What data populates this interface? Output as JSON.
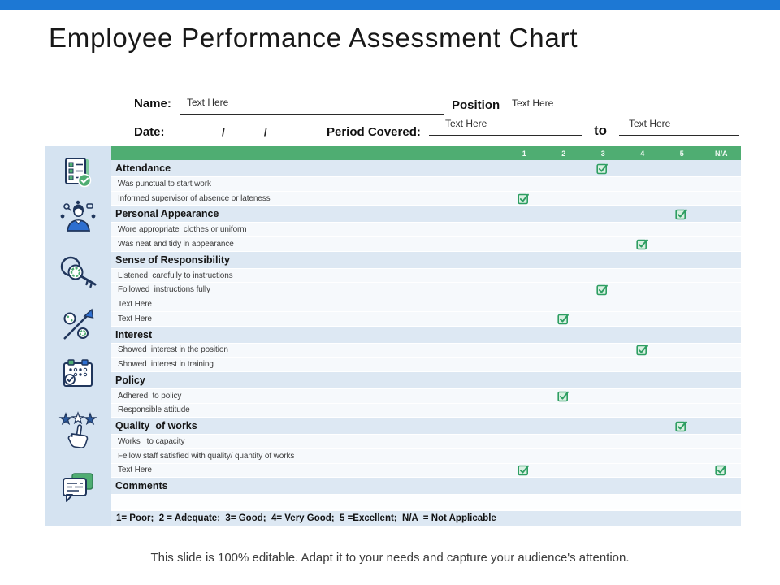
{
  "slide": {
    "title": "Employee Performance Assessment Chart",
    "footer": "This slide is 100% editable. Adapt it to your needs and capture your audience's attention."
  },
  "colors": {
    "top_bar_blue": "#1d78d4",
    "header_green": "#4fad72",
    "check_green": "#2e9e62",
    "check_fill": "#d9f0e2",
    "section_row_bg": "#dde8f3",
    "sidebar_bg": "#d5e3f1"
  },
  "form": {
    "name_label": "Name:",
    "name_value": "Text Here",
    "position_label": "Position",
    "position_value": "Text Here",
    "date_label": "Date:",
    "date_separator": "/",
    "period_label": "Period Covered:",
    "period_from_value": "Text Here",
    "to_label": "to",
    "period_to_value": "Text Here"
  },
  "table": {
    "columns": [
      "1",
      "2",
      "3",
      "4",
      "5",
      "N/A"
    ],
    "rows": [
      {
        "label": "Attendance",
        "type": "section",
        "checks": [
          "3"
        ]
      },
      {
        "label": "Was punctual to start work",
        "type": "item",
        "checks": []
      },
      {
        "label": "Informed supervisor of absence or lateness",
        "type": "item",
        "checks": [
          "1"
        ]
      },
      {
        "label": "Personal Appearance",
        "type": "section",
        "checks": [
          "5"
        ]
      },
      {
        "label": "Wore appropriate  clothes or uniform",
        "type": "item",
        "checks": []
      },
      {
        "label": "Was neat and tidy in appearance",
        "type": "item",
        "checks": [
          "4"
        ]
      },
      {
        "label": "Sense of Responsibility",
        "type": "section",
        "checks": []
      },
      {
        "label": "Listened  carefully to instructions",
        "type": "item",
        "checks": []
      },
      {
        "label": "Followed  instructions fully",
        "type": "item",
        "checks": [
          "3"
        ]
      },
      {
        "label": "Text Here",
        "type": "item",
        "checks": []
      },
      {
        "label": "Text Here",
        "type": "item",
        "checks": [
          "2"
        ]
      },
      {
        "label": "Interest",
        "type": "section",
        "checks": []
      },
      {
        "label": "Showed  interest in the position",
        "type": "item",
        "checks": [
          "4"
        ]
      },
      {
        "label": "Showed  interest in training",
        "type": "item",
        "checks": []
      },
      {
        "label": "Policy",
        "type": "section",
        "checks": []
      },
      {
        "label": "Adhered  to policy",
        "type": "item",
        "checks": [
          "2"
        ]
      },
      {
        "label": "Responsible attitude",
        "type": "item",
        "checks": []
      },
      {
        "label": "Quality  of works",
        "type": "section",
        "checks": [
          "5"
        ]
      },
      {
        "label": "Works   to capacity",
        "type": "item",
        "checks": []
      },
      {
        "label": "Fellow staff satisfied with quality/ quantity of works",
        "type": "item",
        "checks": []
      },
      {
        "label": "Text Here",
        "type": "item",
        "checks": [
          "1",
          "N/A"
        ]
      },
      {
        "label": "Comments",
        "type": "section",
        "checks": []
      },
      {
        "label": "",
        "type": "blank",
        "checks": []
      }
    ],
    "legend": "1= Poor;  2 = Adequate;  3= Good;  4= Very Good;  5 =Excellent;  N/A  = Not Applicable"
  },
  "sidebar": {
    "icons": [
      "checklist-icon",
      "presenter-ideas-icon",
      "key-search-icon",
      "growth-percent-icon",
      "calendar-check-icon",
      "rating-stars-hand-icon",
      "comments-icon"
    ]
  }
}
